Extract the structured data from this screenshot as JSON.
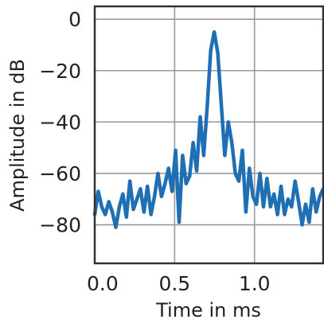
{
  "chart_data": {
    "type": "line",
    "title": "",
    "xlabel": "Time in ms",
    "ylabel": "Amplitude in dB",
    "xlim": [
      0.0,
      1.43
    ],
    "ylim": [
      -95,
      5
    ],
    "xticks": [
      0.0,
      0.5,
      1.0
    ],
    "xtick_labels": [
      "0.0",
      "0.5",
      "1.0"
    ],
    "yticks": [
      0,
      -20,
      -40,
      -60,
      -80
    ],
    "ytick_labels": [
      "0",
      "−20",
      "−40",
      "−60",
      "−80"
    ],
    "grid": true,
    "line_color": "#1f6fb4",
    "series": [
      {
        "x": [
          0.0,
          0.022,
          0.044,
          0.066,
          0.088,
          0.11,
          0.132,
          0.154,
          0.176,
          0.198,
          0.22,
          0.242,
          0.264,
          0.286,
          0.308,
          0.33,
          0.352,
          0.374,
          0.396,
          0.418,
          0.44,
          0.462,
          0.484,
          0.506,
          0.528,
          0.55,
          0.572,
          0.594,
          0.616,
          0.638,
          0.66,
          0.682,
          0.704,
          0.726,
          0.748,
          0.77,
          0.792,
          0.814,
          0.836,
          0.858,
          0.88,
          0.902,
          0.924,
          0.946,
          0.968,
          0.99,
          1.012,
          1.034,
          1.056,
          1.078,
          1.1,
          1.122,
          1.144,
          1.166,
          1.188,
          1.21,
          1.232,
          1.254,
          1.276,
          1.298,
          1.32,
          1.342,
          1.364,
          1.386,
          1.408,
          1.43
        ],
        "values": [
          -76,
          -67,
          -73,
          -76,
          -71,
          -75,
          -81,
          -73,
          -68,
          -77,
          -63,
          -74,
          -70,
          -66,
          -75,
          -65,
          -76,
          -69,
          -60,
          -69,
          -64,
          -58,
          -67,
          -51,
          -79,
          -53,
          -64,
          -61,
          -48,
          -59,
          -38,
          -53,
          -34,
          -12,
          -5,
          -13,
          -33,
          -53,
          -40,
          -48,
          -60,
          -63,
          -51,
          -75,
          -58,
          -69,
          -72,
          -60,
          -73,
          -62,
          -73,
          -68,
          -76,
          -65,
          -76,
          -70,
          -73,
          -63,
          -71,
          -80,
          -72,
          -79,
          -66,
          -75,
          -69,
          -66
        ]
      }
    ]
  }
}
